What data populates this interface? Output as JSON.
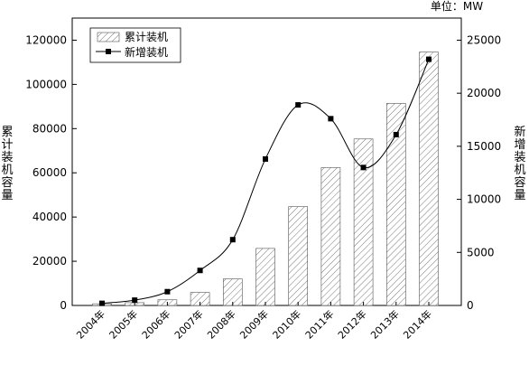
{
  "chart_data": {
    "type": "bar",
    "unit_label": "单位：MW",
    "categories": [
      "2004年",
      "2005年",
      "2006年",
      "2007年",
      "2008年",
      "2009年",
      "2010年",
      "2011年",
      "2012年",
      "2013年",
      "2014年"
    ],
    "series": [
      {
        "name": "累计装机",
        "type": "bar",
        "axis": "left",
        "values": [
          764,
          1260,
          2560,
          5910,
          12020,
          25800,
          44730,
          62360,
          75320,
          91410,
          114610
        ]
      },
      {
        "name": "新增装机",
        "type": "line",
        "axis": "right",
        "values": [
          200,
          500,
          1300,
          3300,
          6200,
          13800,
          18900,
          17600,
          13000,
          16100,
          23200
        ]
      }
    ],
    "ylabel": "累计装机容量",
    "y2label": "新增装机容量",
    "ylim": [
      0,
      130000
    ],
    "y2lim": [
      0,
      27083
    ],
    "yticks": [
      0,
      20000,
      40000,
      60000,
      80000,
      100000,
      120000
    ],
    "y2ticks": [
      0,
      5000,
      10000,
      15000,
      20000,
      25000
    ],
    "legend_position": "top-left",
    "grid": false
  }
}
